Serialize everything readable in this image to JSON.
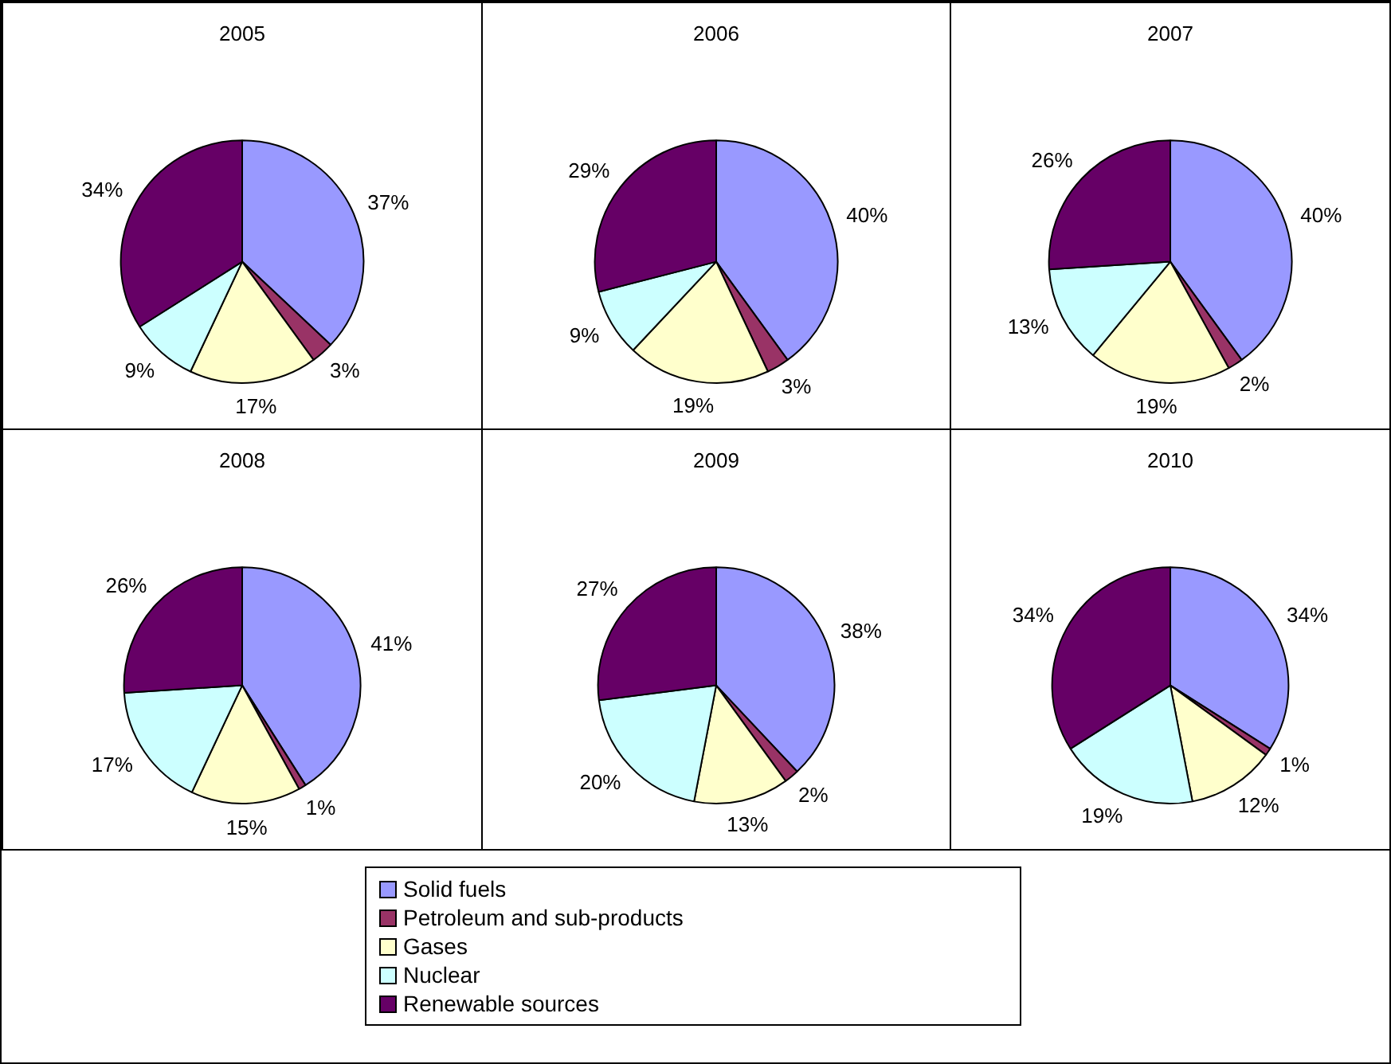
{
  "chart_data": [
    {
      "type": "pie",
      "title": "2005",
      "categories": [
        "Solid fuels",
        "Petroleum and sub-products",
        "Gases",
        "Nuclear",
        "Renewable sources"
      ],
      "values": [
        37,
        3,
        17,
        9,
        34
      ],
      "value_labels": [
        "37%",
        "3%",
        "17%",
        "9%",
        "34%"
      ],
      "colors": [
        "#9999ff",
        "#993366",
        "#ffffcc",
        "#ccffff",
        "#660066"
      ],
      "legend": "bottom"
    },
    {
      "type": "pie",
      "title": "2006",
      "categories": [
        null,
        null,
        null,
        null,
        null
      ],
      "values": [
        40,
        3,
        19,
        9,
        29
      ],
      "value_labels": [
        "40%",
        "3%",
        "19%",
        "9%",
        "29%"
      ],
      "colors": [
        "#9999ff",
        "#993366",
        "#ffffcc",
        "#ccffff",
        "#660066"
      ]
    },
    {
      "type": "pie",
      "title": "2007",
      "categories": [
        null,
        null,
        null,
        null,
        null
      ],
      "values": [
        40,
        2,
        19,
        13,
        26
      ],
      "value_labels": [
        "40%",
        "2%",
        "19%",
        "13%",
        "26%"
      ],
      "colors": [
        "#9999ff",
        "#993366",
        "#ffffcc",
        "#ccffff",
        "#660066"
      ]
    },
    {
      "type": "pie",
      "title": "2008",
      "categories": [
        null,
        null,
        null,
        null,
        null
      ],
      "values": [
        41,
        1,
        15,
        17,
        26
      ],
      "value_labels": [
        "41%",
        "1%",
        "15%",
        "17%",
        "26%"
      ],
      "colors": [
        "#9999ff",
        "#993366",
        "#ffffcc",
        "#ccffff",
        "#660066"
      ]
    },
    {
      "type": "pie",
      "title": "2009",
      "categories": [
        null,
        null,
        null,
        null,
        null
      ],
      "values": [
        38,
        2,
        13,
        20,
        27
      ],
      "value_labels": [
        "38%",
        "2%",
        "13%",
        "20%",
        "27%"
      ],
      "colors": [
        "#9999ff",
        "#993366",
        "#ffffcc",
        "#ccffff",
        "#660066"
      ]
    },
    {
      "type": "pie",
      "title": "2010",
      "categories": [
        null,
        null,
        null,
        null,
        null
      ],
      "values": [
        34,
        1,
        12,
        19,
        34
      ],
      "value_labels": [
        "34%",
        "1%",
        "12%",
        "19%",
        "34%"
      ],
      "colors": [
        "#9999ff",
        "#993366",
        "#ffffcc",
        "#ccffff",
        "#660066"
      ]
    }
  ]
}
